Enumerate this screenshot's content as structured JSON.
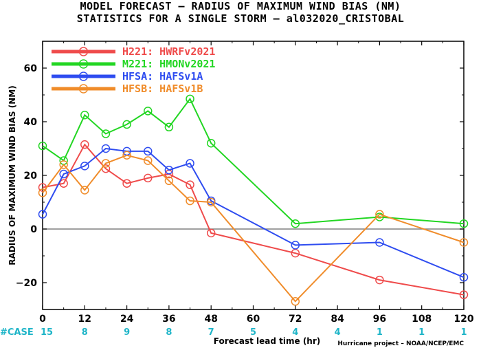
{
  "title_line1": "MODEL FORECAST – RADIUS OF MAXIMUM WIND BIAS (NM)",
  "title_line2": "STATISTICS FOR A SINGLE STORM – al032020_CRISTOBAL",
  "credit": "Hurricane project – NOAA/NCEP/EMC",
  "colors": {
    "zero_line": "#808080",
    "case_text": "#1fb5c8"
  },
  "chart_data": {
    "type": "line",
    "title": "MODEL FORECAST – RADIUS OF MAXIMUM WIND BIAS (NM)",
    "subtitle": "STATISTICS FOR A SINGLE STORM – al032020_CRISTOBAL",
    "xlabel": "Forecast lead time (hr)",
    "ylabel": "RADIUS OF MAXIMUM WIND BIAS (NM)",
    "xlim": [
      0,
      120
    ],
    "ylim": [
      -30,
      70
    ],
    "xticks": [
      0,
      12,
      24,
      36,
      48,
      60,
      72,
      84,
      96,
      108,
      120
    ],
    "yticks": [
      -20,
      0,
      20,
      40,
      60
    ],
    "grid": false,
    "legend_position": "top-left",
    "case_label": "#CASE",
    "case_counts": [
      {
        "x": 0,
        "n": "15"
      },
      {
        "x": 12,
        "n": "8"
      },
      {
        "x": 24,
        "n": "9"
      },
      {
        "x": 36,
        "n": "8"
      },
      {
        "x": 48,
        "n": "7"
      },
      {
        "x": 60,
        "n": "5"
      },
      {
        "x": 72,
        "n": "4"
      },
      {
        "x": 84,
        "n": "4"
      },
      {
        "x": 96,
        "n": "1"
      },
      {
        "x": 108,
        "n": "1"
      },
      {
        "x": 120,
        "n": "1"
      }
    ],
    "series": [
      {
        "name": "H221:  HWRFv2021",
        "color": "#ef4b4b",
        "points": [
          [
            0,
            15.5
          ],
          [
            6,
            17
          ],
          [
            12,
            31.5
          ],
          [
            18,
            22.5
          ],
          [
            24,
            17
          ],
          [
            30,
            19
          ],
          [
            36,
            20.5
          ],
          [
            42,
            16.5
          ],
          [
            48,
            -1.5
          ],
          [
            72,
            -9
          ],
          [
            96,
            -19
          ],
          [
            120,
            -24.5
          ]
        ]
      },
      {
        "name": "M221:  HMONv2021",
        "color": "#22d622",
        "points": [
          [
            0,
            31
          ],
          [
            6,
            25.5
          ],
          [
            12,
            42.5
          ],
          [
            18,
            35.5
          ],
          [
            24,
            39
          ],
          [
            30,
            44
          ],
          [
            36,
            38
          ],
          [
            42,
            48.5
          ],
          [
            48,
            32
          ],
          [
            72,
            2
          ],
          [
            96,
            4.5
          ],
          [
            120,
            2
          ]
        ]
      },
      {
        "name": "HFSA:  HAFSv1A",
        "color": "#2e4cf0",
        "points": [
          [
            0,
            5.5
          ],
          [
            6,
            20.5
          ],
          [
            12,
            23.5
          ],
          [
            18,
            30
          ],
          [
            24,
            29
          ],
          [
            30,
            29
          ],
          [
            36,
            22
          ],
          [
            42,
            24.5
          ],
          [
            48,
            10.5
          ],
          [
            72,
            -6
          ],
          [
            96,
            -5
          ],
          [
            120,
            -18
          ]
        ]
      },
      {
        "name": "HFSB:  HAFSv1B",
        "color": "#f08c2a",
        "points": [
          [
            0,
            13.5
          ],
          [
            6,
            24
          ],
          [
            12,
            14.5
          ],
          [
            18,
            24.5
          ],
          [
            24,
            27.5
          ],
          [
            30,
            25.5
          ],
          [
            36,
            18
          ],
          [
            42,
            10.5
          ],
          [
            48,
            10
          ],
          [
            72,
            -27
          ],
          [
            96,
            5.5
          ],
          [
            120,
            -5
          ]
        ]
      }
    ]
  }
}
